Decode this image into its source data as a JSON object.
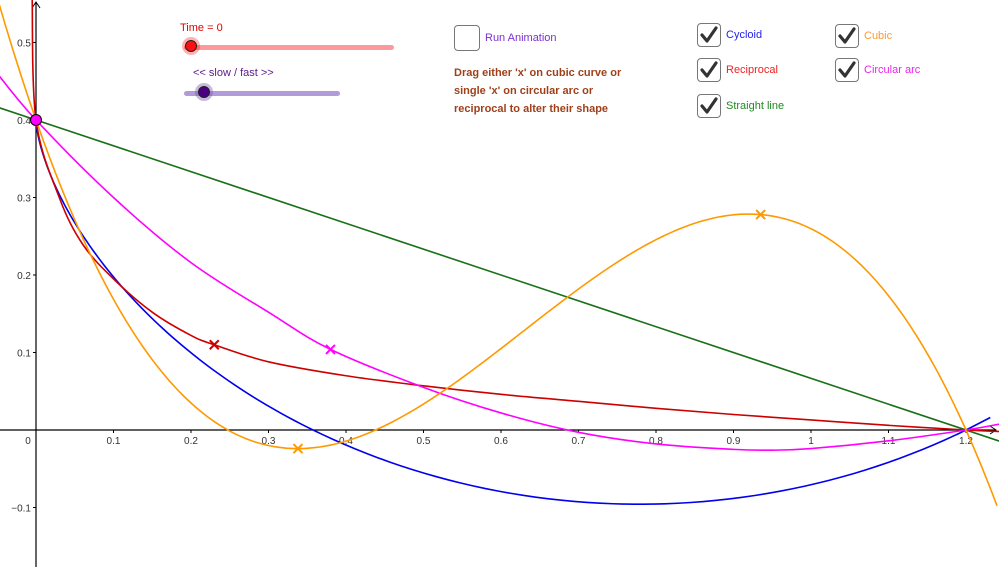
{
  "controls": {
    "time_slider": {
      "label": "Time = 0",
      "value": 0,
      "color": "#ff0000",
      "track_color": "#ff9999"
    },
    "speed_slider": {
      "label": "<< slow / fast >>",
      "value": 0.15,
      "color": "#4b0082",
      "track_color": "#b19cd9"
    },
    "run_animation": {
      "label": "Run Animation",
      "checked": false,
      "color": "#7b2fd6"
    },
    "instructions": "Drag either 'x' on cubic curve or single 'x' on circular arc or reciprocal to alter their shape",
    "checkboxes": [
      {
        "label": "Cycloid",
        "checked": true,
        "color": "#2222ee"
      },
      {
        "label": "Cubic",
        "checked": true,
        "color": "#ff9933"
      },
      {
        "label": "Reciprocal",
        "checked": true,
        "color": "#ee2222"
      },
      {
        "label": "Circular arc",
        "checked": true,
        "color": "#ee22ee"
      },
      {
        "label": "Straight line",
        "checked": true,
        "color": "#228822"
      }
    ]
  },
  "chart_data": {
    "type": "line",
    "title": "",
    "xlabel": "",
    "ylabel": "",
    "xlim": [
      -0.046,
      1.242
    ],
    "ylim": [
      -0.176,
      0.555
    ],
    "grid": false,
    "x_ticks": [
      "0",
      "0.1",
      "0.2",
      "0.3",
      "0.4",
      "0.5",
      "0.6",
      "0.7",
      "0.8",
      "0.9",
      "1",
      "1.1",
      "1.2"
    ],
    "y_ticks": [
      "-0.1",
      "0.1",
      "0.2",
      "0.3",
      "0.4",
      "0.5"
    ],
    "start_point": {
      "x": 0,
      "y": 0.4,
      "color": "#ff00ff"
    },
    "end_point": {
      "x": 1.2,
      "y": 0
    },
    "series": [
      {
        "name": "Straight line",
        "color": "#1a6e1a",
        "kind": "line",
        "points": [
          [
            -0.05,
            0.4167
          ],
          [
            1.25,
            -0.0167
          ]
        ]
      },
      {
        "name": "Cycloid",
        "color": "#0000ee",
        "kind": "cycloid",
        "min": {
          "x": 0.77,
          "y": -0.095
        }
      },
      {
        "name": "Reciprocal",
        "color": "#cc0000",
        "kind": "sampled",
        "points": [
          [
            -0.005,
            0.56
          ],
          [
            0,
            0.4
          ],
          [
            0.03,
            0.3
          ],
          [
            0.06,
            0.24
          ],
          [
            0.1,
            0.195
          ],
          [
            0.15,
            0.152
          ],
          [
            0.2,
            0.122
          ],
          [
            0.23,
            0.11
          ],
          [
            0.3,
            0.088
          ],
          [
            0.4,
            0.07
          ],
          [
            0.5,
            0.057
          ],
          [
            0.6,
            0.046
          ],
          [
            0.7,
            0.037
          ],
          [
            0.8,
            0.028
          ],
          [
            0.9,
            0.02
          ],
          [
            1.0,
            0.013
          ],
          [
            1.1,
            0.006
          ],
          [
            1.2,
            0
          ],
          [
            1.245,
            -0.002
          ]
        ],
        "marker": {
          "x": 0.23,
          "y": 0.11
        }
      },
      {
        "name": "Circular arc",
        "color": "#ff00ff",
        "kind": "sampled",
        "points": [
          [
            -0.05,
            0.46
          ],
          [
            0,
            0.4
          ],
          [
            0.1,
            0.3
          ],
          [
            0.2,
            0.216
          ],
          [
            0.3,
            0.152
          ],
          [
            0.38,
            0.104
          ],
          [
            0.5,
            0.055
          ],
          [
            0.6,
            0.022
          ],
          [
            0.7,
            -0.003
          ],
          [
            0.8,
            -0.018
          ],
          [
            0.9,
            -0.025
          ],
          [
            0.95,
            -0.026
          ],
          [
            1.0,
            -0.024
          ],
          [
            1.1,
            -0.014
          ],
          [
            1.2,
            0
          ],
          [
            1.245,
            0.008
          ]
        ],
        "marker": {
          "x": 0.38,
          "y": 0.104
        }
      },
      {
        "name": "Cubic",
        "color": "#ff9900",
        "kind": "cubic",
        "markers": [
          {
            "x": 0.338,
            "y": -0.024
          },
          {
            "x": 0.935,
            "y": 0.278
          }
        ]
      }
    ]
  }
}
